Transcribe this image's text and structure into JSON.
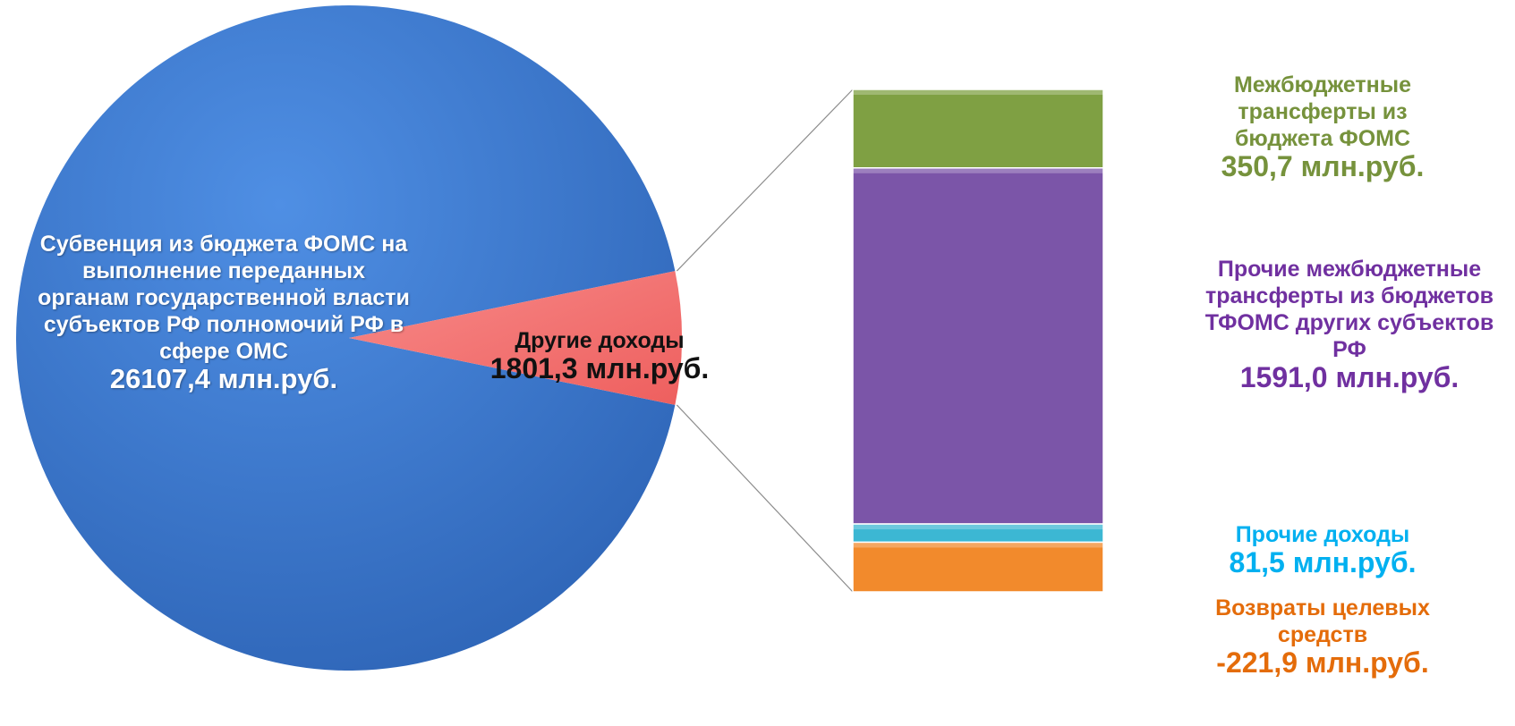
{
  "chart_data": [
    {
      "type": "pie",
      "slices": [
        {
          "label": "Субвенция из бюджета ФОМС на выполнение переданных органам государственной власти субъектов РФ полномочий РФ в сфере ОМС",
          "value_label": "26107,4 млн.руб.",
          "value": 26107.4,
          "color": "#3d7ad6"
        },
        {
          "label": "Другие доходы",
          "value_label": "1801,3 млн.руб.",
          "value": 1801.3,
          "color": "#f47170"
        }
      ]
    },
    {
      "type": "bar",
      "stacked": true,
      "series": [
        {
          "label": "Межбюджетные трансферты из бюджета  ФОМС",
          "value_label": "350,7 млн.руб.",
          "value": 350.7,
          "color": "#7fa043",
          "text_color": "#76923c"
        },
        {
          "label": "Прочие межбюджетные трансферты из бюджетов  ТФОМС других субъектов РФ",
          "value_label": "1591,0 млн.руб.",
          "value": 1591.0,
          "color": "#7b55a8",
          "text_color": "#7030a0"
        },
        {
          "label": "Прочие доходы",
          "value_label": "81,5 млн.руб.",
          "value": 81.5,
          "color": "#3cb7d3",
          "text_color": "#00b0f0"
        },
        {
          "label": "Возвраты целевых средств",
          "value_label": "-221,9 млн.руб.",
          "value": -221.9,
          "color": "#f28a2c",
          "text_color": "#e46c0a"
        }
      ]
    }
  ]
}
